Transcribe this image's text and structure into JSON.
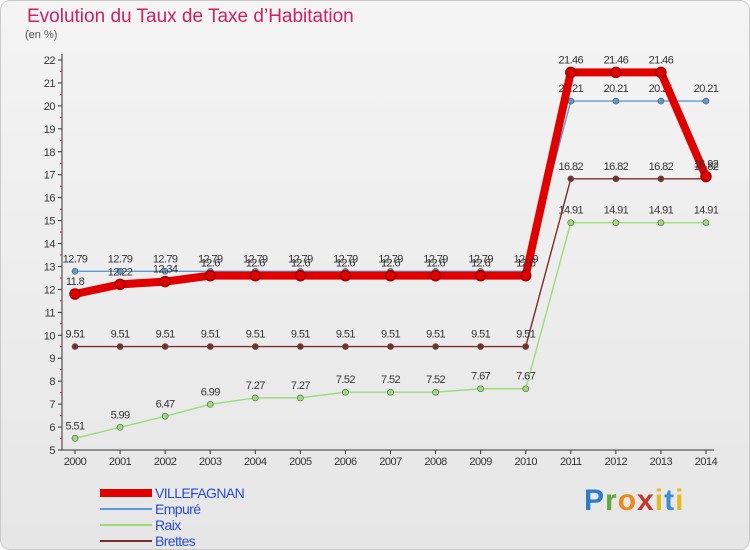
{
  "title": "Evolution du Taux de Taxe d’Habitation",
  "unit": "(en %)",
  "logo": "Proxiti",
  "chart_data": {
    "type": "line",
    "x": [
      "2000",
      "2001",
      "2002",
      "2003",
      "2004",
      "2005",
      "2006",
      "2007",
      "2008",
      "2009",
      "2010",
      "2011",
      "2012",
      "2013",
      "2014"
    ],
    "ylim": [
      5,
      22
    ],
    "yticks": [
      5,
      6,
      7,
      8,
      9,
      10,
      11,
      12,
      13,
      14,
      15,
      16,
      17,
      18,
      19,
      20,
      21,
      22
    ],
    "grid": false,
    "legend_position": "bottom-left",
    "series": [
      {
        "name": "VILLEFAGNAN",
        "color": "#e00000",
        "values": [
          11.8,
          12.22,
          12.34,
          12.6,
          12.6,
          12.6,
          12.6,
          12.6,
          12.6,
          12.6,
          12.6,
          21.46,
          21.46,
          21.46,
          16.92
        ],
        "labels": [
          "11.8",
          "12.22",
          "12.34",
          "12.6",
          "12.6",
          "12.6",
          "12.6",
          "12.6",
          "12.6",
          "12.6",
          "12.6",
          "21.46",
          "21.46",
          "21.46",
          "16.92"
        ]
      },
      {
        "name": "Empuré",
        "color": "#5b9bd5",
        "values": [
          12.79,
          12.79,
          12.79,
          12.79,
          12.79,
          12.79,
          12.79,
          12.79,
          12.79,
          12.79,
          12.79,
          20.21,
          20.21,
          20.21,
          20.21
        ],
        "labels": [
          "12.79",
          "12.79",
          "12.79",
          "12.79",
          "12.79",
          "12.79",
          "12.79",
          "12.79",
          "12.79",
          "12.79",
          "12.79",
          "20.21",
          "20.21",
          "20.21",
          "20.21"
        ]
      },
      {
        "name": "Raix",
        "color": "#99dd77",
        "values": [
          5.51,
          5.99,
          6.47,
          6.99,
          7.27,
          7.27,
          7.52,
          7.52,
          7.52,
          7.67,
          7.67,
          14.91,
          14.91,
          14.91,
          14.91
        ],
        "labels": [
          "5.51",
          "5.99",
          "6.47",
          "6.99",
          "7.27",
          "7.27",
          "7.52",
          "7.52",
          "7.52",
          "7.67",
          "7.67",
          "14.91",
          "14.91",
          "14.91",
          "14.91"
        ]
      },
      {
        "name": "Brettes",
        "color": "#7b2d2d",
        "values": [
          9.51,
          9.51,
          9.51,
          9.51,
          9.51,
          9.51,
          9.51,
          9.51,
          9.51,
          9.51,
          9.51,
          16.82,
          16.82,
          16.82,
          16.82
        ],
        "labels": [
          "9.51",
          "9.51",
          "9.51",
          "9.51",
          "9.51",
          "9.51",
          "9.51",
          "9.51",
          "9.51",
          "9.51",
          "9.51",
          "16.82",
          "16.82",
          "16.82",
          "16.82"
        ]
      }
    ]
  }
}
